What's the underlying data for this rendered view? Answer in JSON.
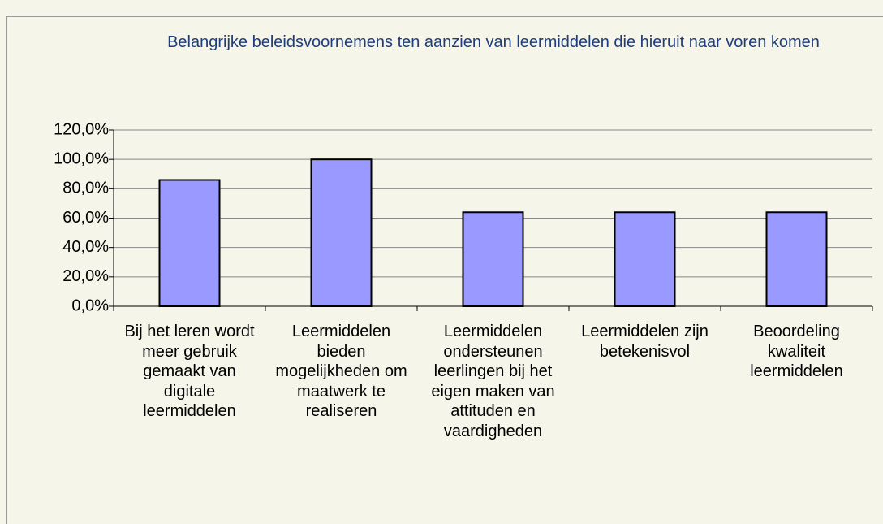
{
  "chart_data": {
    "type": "bar",
    "title": "Belangrijke beleidsvoornemens ten aanzien van leermiddelen die hieruit naar voren komen",
    "categories": [
      "Bij het leren wordt meer gebruik gemaakt van digitale leermiddelen",
      "Leermiddelen bieden mogelijkheden om maatwerk te realiseren",
      "Leermiddelen ondersteunen leerlingen bij het eigen maken van attituden en vaardigheden",
      "Leermiddelen zijn betekenisvol",
      "Beoordeling kwaliteit leermiddelen"
    ],
    "values": [
      86,
      100,
      64,
      64,
      64
    ],
    "color": "#9999ff",
    "ylim": [
      0,
      120
    ],
    "yticks": [
      {
        "value": 0,
        "label": "0,0%"
      },
      {
        "value": 20,
        "label": "20,0%"
      },
      {
        "value": 40,
        "label": "40,0%"
      },
      {
        "value": 60,
        "label": "60,0%"
      },
      {
        "value": 80,
        "label": "80,0%"
      },
      {
        "value": 100,
        "label": "100,0%"
      },
      {
        "value": 120,
        "label": "120,0%"
      }
    ],
    "grid": true
  }
}
